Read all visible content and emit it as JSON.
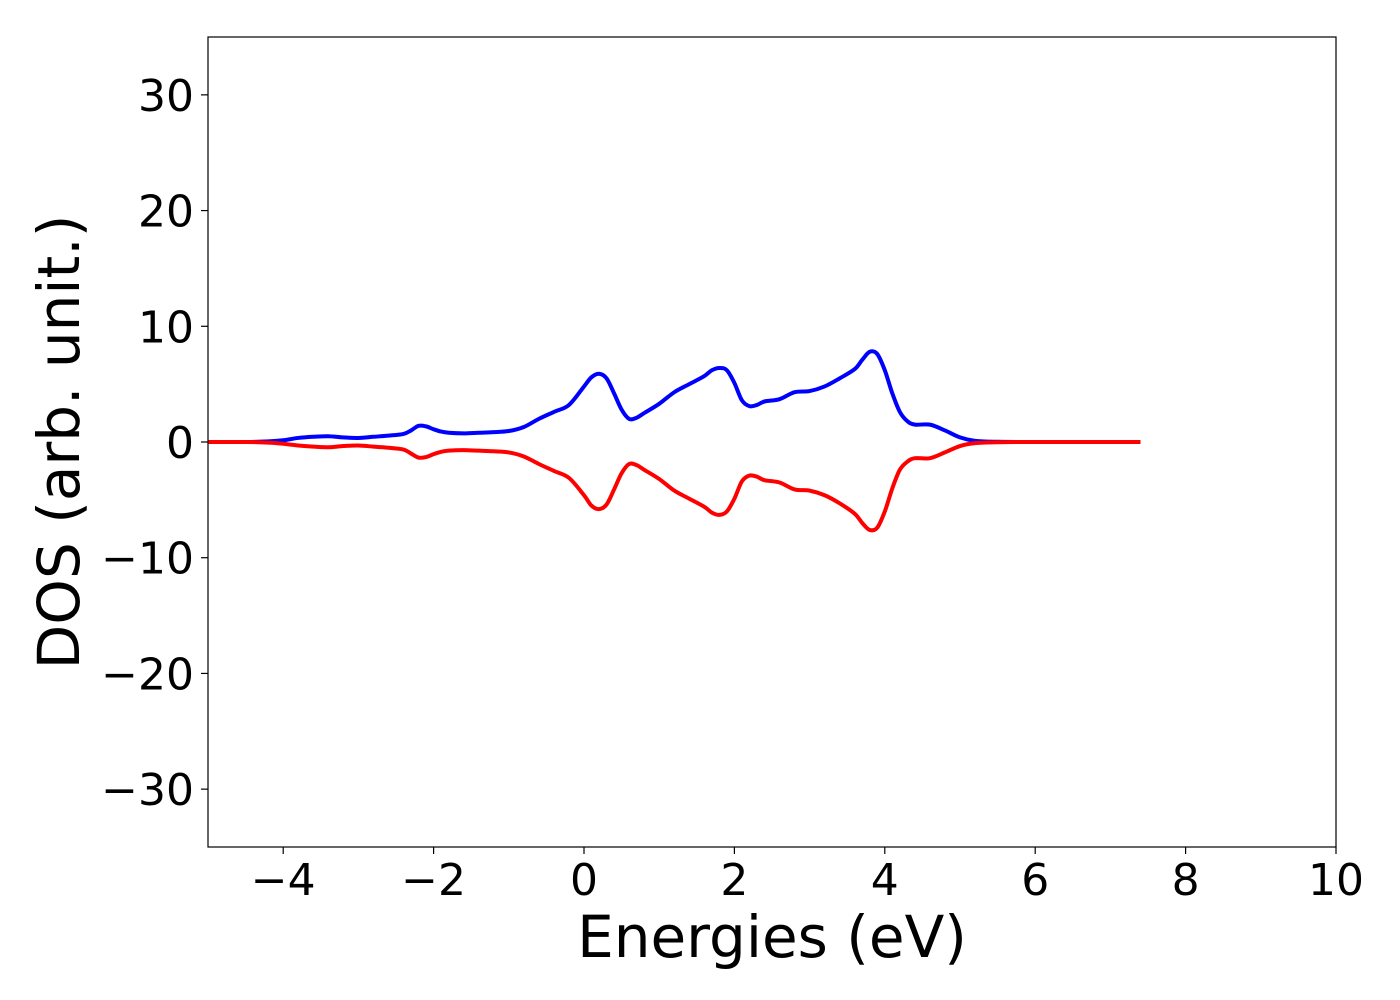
{
  "chart_data": {
    "type": "line",
    "title": "",
    "xlabel": "Energies (eV)",
    "ylabel": "DOS (arb. unit.)",
    "xlim": [
      -5,
      10
    ],
    "ylim": [
      -35,
      35
    ],
    "xticks": [
      -4,
      -2,
      0,
      2,
      4,
      6,
      8,
      10
    ],
    "xtick_labels": [
      "−4",
      "−2",
      "0",
      "2",
      "4",
      "6",
      "8",
      "10"
    ],
    "yticks": [
      30,
      20,
      10,
      0,
      -10,
      -20,
      -30
    ],
    "ytick_labels": [
      "30",
      "20",
      "10",
      "0",
      "−10",
      "−20",
      "−30"
    ],
    "grid": false,
    "legend": "none",
    "series": [
      {
        "color": "#0000ff",
        "x": [
          -5.0,
          -4.5,
          -4.2,
          -4.0,
          -3.8,
          -3.6,
          -3.4,
          -3.2,
          -3.0,
          -2.8,
          -2.6,
          -2.4,
          -2.3,
          -2.2,
          -2.1,
          -2.0,
          -1.9,
          -1.8,
          -1.6,
          -1.4,
          -1.2,
          -1.0,
          -0.8,
          -0.6,
          -0.4,
          -0.2,
          0.0,
          0.1,
          0.2,
          0.3,
          0.4,
          0.5,
          0.6,
          0.7,
          0.8,
          1.0,
          1.2,
          1.4,
          1.6,
          1.7,
          1.8,
          1.9,
          2.0,
          2.1,
          2.2,
          2.3,
          2.4,
          2.6,
          2.8,
          3.0,
          3.2,
          3.4,
          3.6,
          3.7,
          3.8,
          3.9,
          4.0,
          4.1,
          4.2,
          4.3,
          4.4,
          4.6,
          4.8,
          5.0,
          5.2,
          5.5,
          6.0,
          7.0,
          7.4
        ],
        "y": [
          0.0,
          0.0,
          0.05,
          0.15,
          0.35,
          0.45,
          0.5,
          0.4,
          0.35,
          0.45,
          0.55,
          0.7,
          1.0,
          1.4,
          1.35,
          1.1,
          0.9,
          0.8,
          0.75,
          0.8,
          0.85,
          0.95,
          1.3,
          2.0,
          2.6,
          3.2,
          4.8,
          5.6,
          5.9,
          5.5,
          4.2,
          2.8,
          2.0,
          2.1,
          2.5,
          3.3,
          4.3,
          5.0,
          5.7,
          6.2,
          6.4,
          6.2,
          5.1,
          3.6,
          3.1,
          3.2,
          3.5,
          3.7,
          4.3,
          4.4,
          4.8,
          5.5,
          6.3,
          7.1,
          7.8,
          7.6,
          6.2,
          4.2,
          2.6,
          1.8,
          1.5,
          1.5,
          1.0,
          0.4,
          0.1,
          0.02,
          0.0,
          0.0,
          0.0
        ]
      },
      {
        "color": "#ff0000",
        "x": [
          -5.0,
          -4.5,
          -4.2,
          -4.0,
          -3.8,
          -3.6,
          -3.4,
          -3.2,
          -3.0,
          -2.8,
          -2.6,
          -2.4,
          -2.3,
          -2.2,
          -2.1,
          -2.0,
          -1.9,
          -1.8,
          -1.6,
          -1.4,
          -1.2,
          -1.0,
          -0.8,
          -0.6,
          -0.4,
          -0.2,
          0.0,
          0.1,
          0.2,
          0.3,
          0.4,
          0.5,
          0.6,
          0.7,
          0.8,
          1.0,
          1.2,
          1.4,
          1.6,
          1.7,
          1.8,
          1.9,
          2.0,
          2.1,
          2.2,
          2.3,
          2.4,
          2.6,
          2.8,
          3.0,
          3.2,
          3.4,
          3.6,
          3.7,
          3.8,
          3.9,
          4.0,
          4.1,
          4.2,
          4.3,
          4.4,
          4.6,
          4.8,
          5.0,
          5.2,
          5.5,
          6.0,
          7.0,
          7.4
        ],
        "y": [
          0.0,
          0.0,
          -0.05,
          -0.15,
          -0.3,
          -0.4,
          -0.45,
          -0.35,
          -0.3,
          -0.4,
          -0.5,
          -0.65,
          -1.0,
          -1.35,
          -1.3,
          -1.05,
          -0.85,
          -0.75,
          -0.7,
          -0.75,
          -0.8,
          -0.9,
          -1.25,
          -1.9,
          -2.5,
          -3.1,
          -4.6,
          -5.5,
          -5.8,
          -5.4,
          -4.1,
          -2.7,
          -1.9,
          -2.0,
          -2.4,
          -3.2,
          -4.2,
          -4.9,
          -5.6,
          -6.1,
          -6.3,
          -6.0,
          -4.9,
          -3.4,
          -2.9,
          -3.0,
          -3.3,
          -3.5,
          -4.1,
          -4.2,
          -4.6,
          -5.3,
          -6.2,
          -7.0,
          -7.6,
          -7.4,
          -6.0,
          -4.0,
          -2.4,
          -1.7,
          -1.4,
          -1.4,
          -0.9,
          -0.35,
          -0.1,
          -0.02,
          0.0,
          0.0,
          0.0
        ]
      }
    ]
  }
}
